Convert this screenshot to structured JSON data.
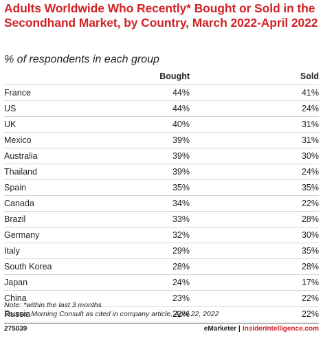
{
  "chart_data": {
    "type": "table",
    "title": "Adults Worldwide Who Recently* Bought or Sold in the Secondhand Market, by Country, March 2022-April 2022",
    "subtitle": "% of respondents in each group",
    "columns": [
      "",
      "Bought",
      "Sold"
    ],
    "rows": [
      {
        "country": "France",
        "bought": "44%",
        "sold": "41%"
      },
      {
        "country": "US",
        "bought": "44%",
        "sold": "24%"
      },
      {
        "country": "UK",
        "bought": "40%",
        "sold": "31%"
      },
      {
        "country": "Mexico",
        "bought": "39%",
        "sold": "31%"
      },
      {
        "country": "Australia",
        "bought": "39%",
        "sold": "30%"
      },
      {
        "country": "Thailand",
        "bought": "39%",
        "sold": "24%"
      },
      {
        "country": "Spain",
        "bought": "35%",
        "sold": "35%"
      },
      {
        "country": "Canada",
        "bought": "34%",
        "sold": "22%"
      },
      {
        "country": "Brazil",
        "bought": "33%",
        "sold": "28%"
      },
      {
        "country": "Germany",
        "bought": "32%",
        "sold": "30%"
      },
      {
        "country": "Italy",
        "bought": "29%",
        "sold": "35%"
      },
      {
        "country": "South Korea",
        "bought": "28%",
        "sold": "28%"
      },
      {
        "country": "Japan",
        "bought": "24%",
        "sold": "17%"
      },
      {
        "country": "China",
        "bought": "23%",
        "sold": "22%"
      },
      {
        "country": "Russia",
        "bought": "22%",
        "sold": "22%"
      }
    ],
    "note": "Note: *within the last 3 months",
    "source": "Source: Morning Consult as cited in company article, April 22, 2022"
  },
  "footer": {
    "chart_id": "275039",
    "brand_1": "eMarketer",
    "separator": "|",
    "brand_2": "InsiderIntelligence.com"
  },
  "colors": {
    "title": "#d12327",
    "text": "#231f20",
    "rule": "#d6d6d6"
  }
}
